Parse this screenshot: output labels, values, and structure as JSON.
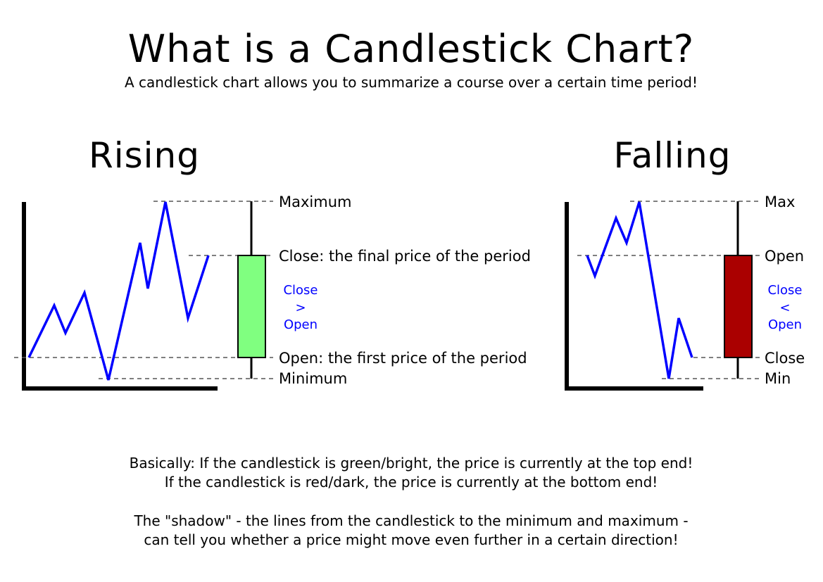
{
  "title": "What is a Candlestick Chart?",
  "subtitle": "A candlestick chart allows you to summarize a course over a certain time period!",
  "colors": {
    "rising_body": "#80ff80",
    "falling_body": "#aa0000",
    "price_line": "#0000ff",
    "compare_text": "#0000ff"
  },
  "rising": {
    "heading": "Rising",
    "labels": {
      "maximum": "Maximum",
      "close": "Close: the final price of the period",
      "open": "Open: the first price of the period",
      "minimum": "Minimum"
    },
    "comparison": [
      "Close",
      ">",
      "Open"
    ]
  },
  "falling": {
    "heading": "Falling",
    "labels": {
      "maximum": "Max",
      "open": "Open",
      "close": "Close",
      "minimum": "Min"
    },
    "comparison": [
      "Close",
      "<",
      "Open"
    ]
  },
  "notes": {
    "line1": "Basically: If the candlestick is green/bright, the price is currently at the top end!",
    "line2": "If the candlestick is red/dark, the price is currently at the bottom end!",
    "line3": "The \"shadow\" - the lines from the candlestick to the minimum and maximum -",
    "line4": "can tell you whether a price might move even further in a certain direction!"
  }
}
